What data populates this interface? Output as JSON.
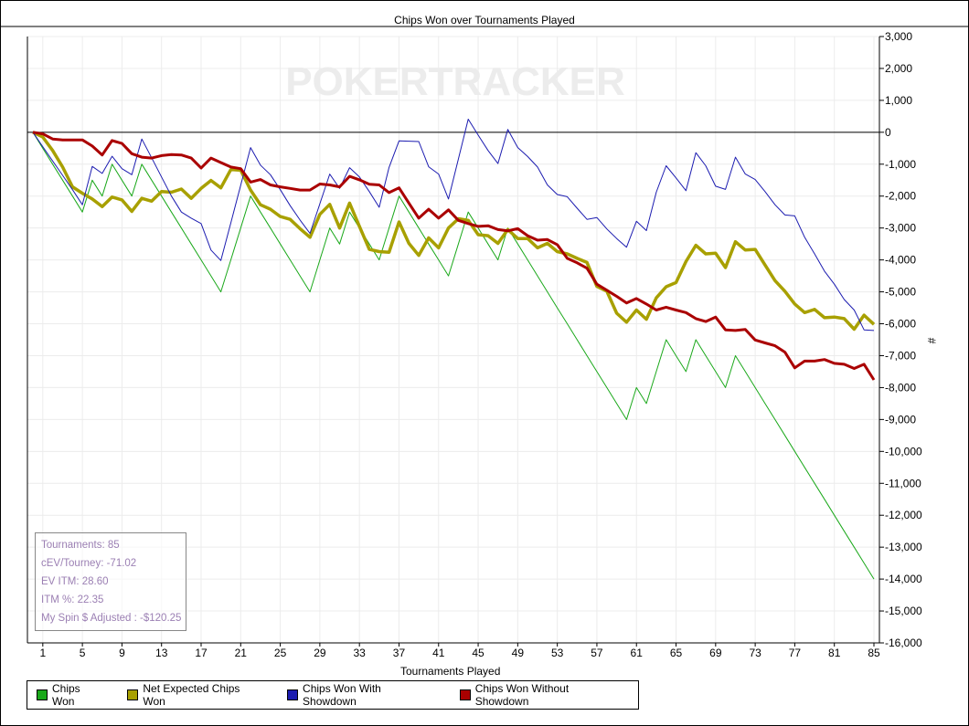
{
  "chart_data": {
    "type": "line",
    "title": "Chips Won over Tournaments Played",
    "xlabel": "Tournaments Played",
    "ylabel": "#",
    "xlim": [
      0,
      85
    ],
    "ylim": [
      -16000,
      3000
    ],
    "x_ticks": [
      "1",
      "5",
      "9",
      "13",
      "17",
      "21",
      "25",
      "29",
      "33",
      "37",
      "41",
      "45",
      "49",
      "53",
      "57",
      "61",
      "65",
      "69",
      "73",
      "77",
      "81",
      "85"
    ],
    "y_ticks": [
      "3,000",
      "2,000",
      "1,000",
      "0",
      "-1,000",
      "-2,000",
      "-3,000",
      "-4,000",
      "-5,000",
      "-6,000",
      "-7,000",
      "-8,000",
      "-9,000",
      "-10,000",
      "-11,000",
      "-12,000",
      "-13,000",
      "-14,000",
      "-15,000",
      "-16,000"
    ],
    "grid": true,
    "legend_position": "bottom",
    "watermark": "POKERTRACKER",
    "series": [
      {
        "name": "Chips Won",
        "color": "#1aa81a",
        "width": 1,
        "values": [
          0,
          -500,
          -1000,
          -1500,
          -2000,
          -2500,
          -1500,
          -2000,
          -1000,
          -1500,
          -2000,
          -1000,
          -1500,
          -2000,
          -2500,
          -3000,
          -3500,
          -4000,
          -4500,
          -5000,
          -4000,
          -3000,
          -2000,
          -2500,
          -3000,
          -3500,
          -4000,
          -4500,
          -5000,
          -4000,
          -3000,
          -3500,
          -2500,
          -3000,
          -3500,
          -4000,
          -3000,
          -2000,
          -2500,
          -3000,
          -3500,
          -4000,
          -4500,
          -3500,
          -2500,
          -3000,
          -3500,
          -4000,
          -3000,
          -3500,
          -4000,
          -4500,
          -5000,
          -5500,
          -6000,
          -6500,
          -7000,
          -7500,
          -8000,
          -8500,
          -9000,
          -8000,
          -8500,
          -7500,
          -6500,
          -7000,
          -7500,
          -6500,
          -7000,
          -7500,
          -8000,
          -7000,
          -7500,
          -8000,
          -8500,
          -9000,
          -9500,
          -10000,
          -10500,
          -11000,
          -11500,
          -12000,
          -12500,
          -13000,
          -13500,
          -14000
        ]
      },
      {
        "name": "Net Expected Chips Won",
        "color": "#a8a000",
        "width": 3.5,
        "values": [
          0,
          -150,
          -570,
          -1090,
          -1710,
          -1910,
          -2090,
          -2330,
          -2030,
          -2120,
          -2480,
          -2070,
          -2160,
          -1860,
          -1880,
          -1780,
          -2070,
          -1760,
          -1510,
          -1740,
          -1170,
          -1190,
          -1810,
          -2270,
          -2410,
          -2640,
          -2730,
          -3020,
          -3290,
          -2570,
          -2260,
          -3000,
          -2220,
          -2950,
          -3670,
          -3740,
          -3760,
          -2810,
          -3480,
          -3860,
          -3310,
          -3620,
          -3000,
          -2710,
          -2760,
          -3210,
          -3240,
          -3480,
          -3050,
          -3330,
          -3330,
          -3620,
          -3480,
          -3740,
          -3810,
          -3950,
          -4080,
          -4830,
          -4980,
          -5670,
          -5950,
          -5570,
          -5860,
          -5190,
          -4840,
          -4710,
          -4050,
          -3540,
          -3810,
          -3790,
          -4240,
          -3430,
          -3690,
          -3670,
          -4160,
          -4650,
          -4980,
          -5380,
          -5650,
          -5550,
          -5810,
          -5790,
          -5840,
          -6170,
          -5730,
          -6020
        ]
      },
      {
        "name": "Chips Won With Showdown",
        "color": "#1c1cb0",
        "width": 1,
        "values": [
          0,
          -450,
          -900,
          -1350,
          -1800,
          -2270,
          -1070,
          -1290,
          -750,
          -1140,
          -1330,
          -210,
          -800,
          -1400,
          -2000,
          -2500,
          -2690,
          -2860,
          -3690,
          -4020,
          -2840,
          -1660,
          -480,
          -1030,
          -1330,
          -1800,
          -2300,
          -2750,
          -3170,
          -2240,
          -1310,
          -1760,
          -1110,
          -1400,
          -1860,
          -2350,
          -1100,
          -270,
          -280,
          -290,
          -1080,
          -1310,
          -2090,
          -840,
          410,
          -90,
          -570,
          -980,
          90,
          -480,
          -760,
          -1090,
          -1650,
          -1950,
          -2020,
          -2380,
          -2730,
          -2670,
          -3030,
          -3330,
          -3600,
          -2790,
          -3080,
          -1880,
          -1050,
          -1430,
          -1830,
          -640,
          -1050,
          -1690,
          -1790,
          -780,
          -1310,
          -1480,
          -1860,
          -2270,
          -2590,
          -2620,
          -3290,
          -3810,
          -4350,
          -4760,
          -5240,
          -5570,
          -6190,
          -6210
        ]
      },
      {
        "name": "Chips Won Without Showdown",
        "color": "#aa0000",
        "width": 3,
        "values": [
          0,
          -50,
          -210,
          -240,
          -240,
          -240,
          -430,
          -710,
          -260,
          -350,
          -670,
          -780,
          -810,
          -730,
          -700,
          -710,
          -810,
          -1120,
          -810,
          -950,
          -1090,
          -1140,
          -1560,
          -1480,
          -1650,
          -1710,
          -1760,
          -1810,
          -1810,
          -1620,
          -1650,
          -1710,
          -1380,
          -1490,
          -1630,
          -1650,
          -1890,
          -1740,
          -2220,
          -2690,
          -2410,
          -2690,
          -2430,
          -2760,
          -2860,
          -2950,
          -2930,
          -3050,
          -3090,
          -3020,
          -3240,
          -3380,
          -3360,
          -3520,
          -3950,
          -4090,
          -4260,
          -4760,
          -4950,
          -5140,
          -5350,
          -5210,
          -5380,
          -5570,
          -5480,
          -5570,
          -5650,
          -5840,
          -5930,
          -5790,
          -6190,
          -6210,
          -6180,
          -6510,
          -6600,
          -6690,
          -6890,
          -7380,
          -7170,
          -7170,
          -7120,
          -7240,
          -7270,
          -7400,
          -7270,
          -7760
        ]
      }
    ]
  },
  "stats": {
    "tournaments": "Tournaments: 85",
    "cev": "cEV/Tourney: -71.02",
    "ev_itm": "EV ITM: 28.60",
    "itm_pct": "ITM %: 22.35",
    "spin_adjusted": "My Spin $ Adjusted : -$120.25"
  }
}
